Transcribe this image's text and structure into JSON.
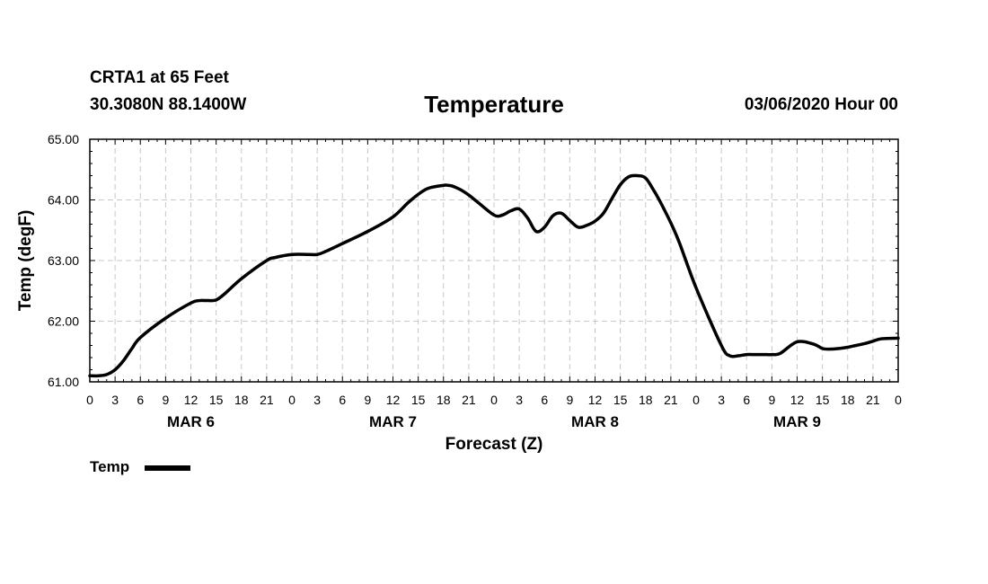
{
  "header": {
    "station": "CRTA1 at 65 Feet",
    "coords": "30.3080N 88.1400W",
    "title": "Temperature",
    "issued": "03/06/2020 Hour 00"
  },
  "chart_data": {
    "type": "line",
    "title": "Temperature",
    "xlabel": "Forecast (Z)",
    "ylabel": "Temp (degF)",
    "ylim": [
      61.0,
      65.0
    ],
    "yticks": [
      "61.00",
      "62.00",
      "63.00",
      "64.00",
      "65.00"
    ],
    "xlim": [
      0,
      96
    ],
    "xtick_labels": [
      "0",
      "3",
      "6",
      "9",
      "12",
      "15",
      "18",
      "21",
      "0",
      "3",
      "6",
      "9",
      "12",
      "15",
      "18",
      "21",
      "0",
      "3",
      "6",
      "9",
      "12",
      "15",
      "18",
      "21",
      "0",
      "3",
      "6",
      "9",
      "12",
      "15",
      "18",
      "21",
      "0"
    ],
    "day_labels": [
      {
        "label": "MAR 6",
        "hour": 12
      },
      {
        "label": "MAR 7",
        "hour": 36
      },
      {
        "label": "MAR 8",
        "hour": 60
      },
      {
        "label": "MAR 9",
        "hour": 84
      }
    ],
    "grid": true,
    "legend": "bottom-left",
    "series": [
      {
        "name": "Temp",
        "x": [
          0,
          1,
          2,
          3,
          4,
          5,
          6,
          9,
          12,
          13,
          14,
          15,
          16,
          18,
          21,
          22,
          24,
          26,
          27,
          28,
          30,
          33,
          36,
          38,
          40,
          42,
          42.5,
          43,
          44,
          45,
          46,
          48,
          49,
          50,
          51,
          52,
          53,
          54,
          55,
          56,
          57,
          58,
          59,
          60,
          61,
          62,
          63,
          64,
          65,
          66,
          67,
          67.5,
          68,
          69,
          70,
          72,
          75,
          76,
          77,
          78,
          79,
          80,
          81,
          82,
          84,
          86,
          87,
          88,
          89,
          90,
          91,
          92,
          93,
          94,
          96
        ],
        "values": [
          61.1,
          61.1,
          61.12,
          61.2,
          61.35,
          61.55,
          61.73,
          62.05,
          62.3,
          62.34,
          62.34,
          62.35,
          62.45,
          62.7,
          63.0,
          63.05,
          63.1,
          63.1,
          63.1,
          63.15,
          63.28,
          63.48,
          63.72,
          63.98,
          64.18,
          64.24,
          64.24,
          64.23,
          64.17,
          64.08,
          63.97,
          63.75,
          63.75,
          63.82,
          63.85,
          63.7,
          63.48,
          63.55,
          63.74,
          63.78,
          63.66,
          63.55,
          63.58,
          63.65,
          63.78,
          64.02,
          64.25,
          64.38,
          64.4,
          64.36,
          64.15,
          64.03,
          63.9,
          63.62,
          63.3,
          62.55,
          61.6,
          61.43,
          61.43,
          61.45,
          61.45,
          61.45,
          61.45,
          61.47,
          61.66,
          61.62,
          61.55,
          61.54,
          61.55,
          61.57,
          61.6,
          61.63,
          61.67,
          61.71,
          61.72
        ]
      }
    ]
  }
}
